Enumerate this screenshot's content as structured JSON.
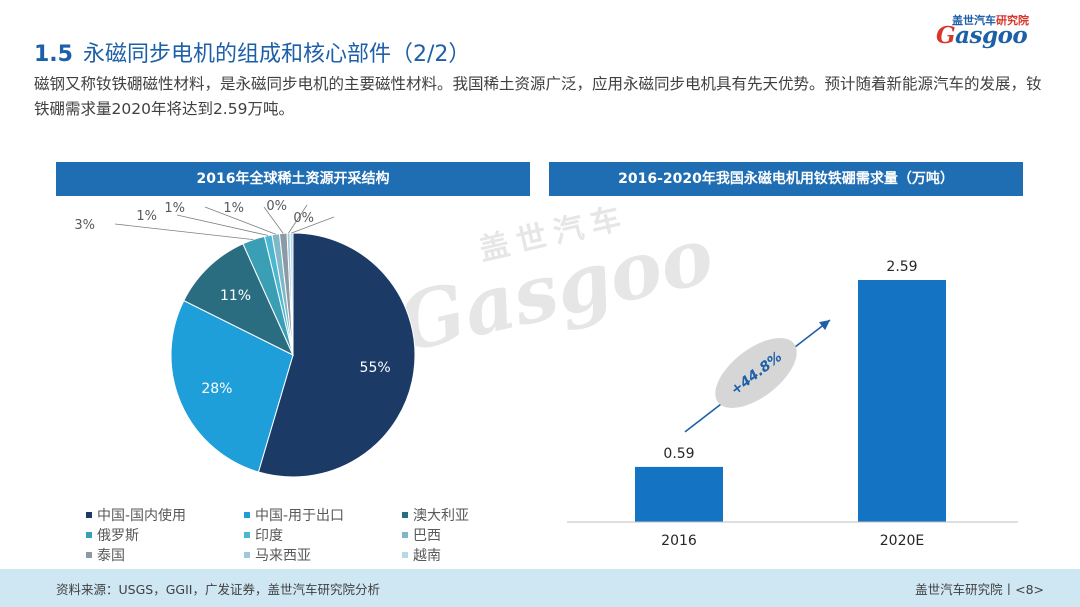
{
  "header": {
    "section_number": "1.5",
    "title": "永磁同步电机的组成和核心部件（2/2）",
    "logo_cn_blue": "盖世汽车",
    "logo_cn_red": "研究院",
    "logo_en": "asgoo",
    "logo_en_initial": "G"
  },
  "intro": "磁钢又称钕铁硼磁性材料，是永磁同步电机的主要磁性材料。我国稀土资源广泛，应用永磁同步电机具有先天优势。预计随着新能源汽车的发展，钕铁硼需求量2020年将达到2.59万吨。",
  "watermark": {
    "cn": "盖世汽车",
    "en": "Gasgoo"
  },
  "colors": {
    "accent": "#1f6db3",
    "title": "#1d5fa8",
    "footer_bg": "#cfe6f3",
    "bar": "#1573c4",
    "growth_ellipse": "#d6d6d6",
    "growth_text": "#1d5fa8"
  },
  "chart_data": [
    {
      "type": "pie",
      "title": "2016年全球稀土资源开采结构",
      "labels": [
        "中国-国内使用",
        "中国-用于出口",
        "澳大利亚",
        "俄罗斯",
        "印度",
        "巴西",
        "泰国",
        "马来西亚",
        "越南"
      ],
      "values": [
        55,
        28,
        11,
        3,
        1,
        1,
        1,
        0,
        0
      ],
      "value_labels": [
        "55%",
        "28%",
        "11%",
        "3%",
        "1%",
        "1%",
        "1%",
        "0%",
        "0%"
      ],
      "colors": [
        "#1b3a66",
        "#1f9fd9",
        "#2b6d80",
        "#3a9fb4",
        "#4db6d0",
        "#7fb8c6",
        "#8c99a6",
        "#9fc8da",
        "#b5d9e6"
      ],
      "legend_position": "bottom"
    },
    {
      "type": "bar",
      "title": "2016-2020年我国永磁电机用钕铁硼需求量（万吨）",
      "categories": [
        "2016",
        "2020E"
      ],
      "values": [
        0.59,
        2.59
      ],
      "value_labels": [
        "0.59",
        "2.59"
      ],
      "ylim": [
        0,
        3.0
      ],
      "annotation": "+44.8%",
      "grid": false
    }
  ],
  "footer": {
    "source": "资料来源：USGS，GGII，广发证券，盖世汽车研究院分析",
    "page": "盖世汽车研究院丨<8>"
  }
}
